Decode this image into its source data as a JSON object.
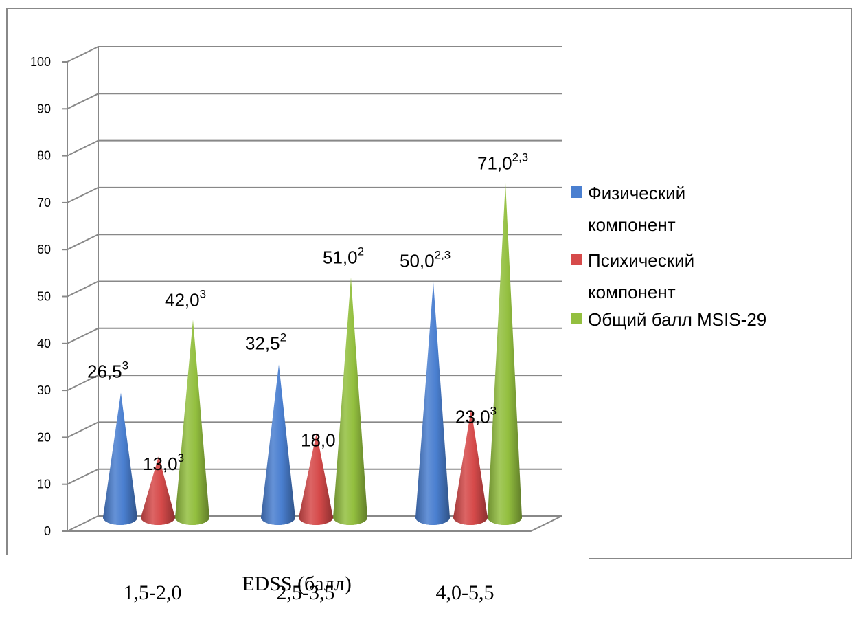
{
  "chart_data": {
    "type": "bar",
    "bar_shape": "cone",
    "categories": [
      "1,5-2,0",
      "2,5-3,5",
      "4,0-5,5"
    ],
    "xlabel": "EDSS (балл)",
    "ylabel": "",
    "ylim": [
      0,
      100
    ],
    "yticks": [
      0,
      10,
      20,
      30,
      40,
      50,
      60,
      70,
      80,
      90,
      100
    ],
    "grid": true,
    "legend_position": "right",
    "series": [
      {
        "name": "Физический компонент",
        "name_lines": [
          "Физический",
          "компонент"
        ],
        "color": "#4a7fd0",
        "values": [
          26.5,
          32.5,
          50.0
        ],
        "labels": [
          {
            "text": "26,5",
            "sup": "3"
          },
          {
            "text": "32,5",
            "sup": "2"
          },
          {
            "text": "50,0",
            "sup": "2,3"
          }
        ]
      },
      {
        "name": "Психический компонент",
        "name_lines": [
          "Психический",
          "компонент"
        ],
        "color": "#d64a4a",
        "values": [
          13.0,
          18.0,
          23.0
        ],
        "labels": [
          {
            "text": "13,0",
            "sup": "3"
          },
          {
            "text": "18,0",
            "sup": ""
          },
          {
            "text": "23,0",
            "sup": "3"
          }
        ]
      },
      {
        "name": "Общий балл MSIS-29",
        "name_lines": [
          "Общий балл MSIS-29"
        ],
        "color": "#93bf3f",
        "values": [
          42.0,
          51.0,
          71.0
        ],
        "labels": [
          {
            "text": "42,0",
            "sup": "3"
          },
          {
            "text": "51,0",
            "sup": "2"
          },
          {
            "text": "71,0",
            "sup": "2,3"
          }
        ]
      }
    ]
  }
}
